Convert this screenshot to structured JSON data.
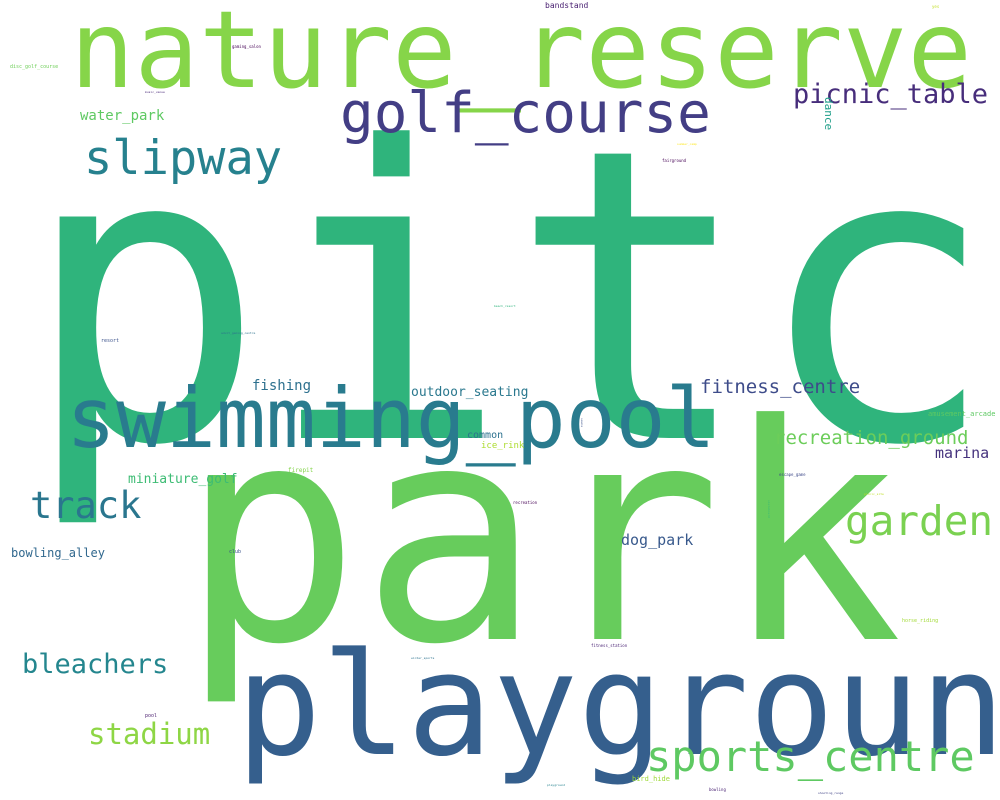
{
  "colors": {
    "background": "#ffffff",
    "palette": {
      "dark_purple": "#443983",
      "purple": "#3b528b",
      "blue": "#31688e",
      "teal_blue": "#26828e",
      "teal": "#1f9e89",
      "green_teal": "#35b779",
      "green": "#6ece58",
      "lime": "#b5de2b",
      "yellow": "#fde725"
    }
  },
  "words": [
    {
      "text": "pitch",
      "color": "#2fb47c"
    },
    {
      "text": "park",
      "color": "#67cc5c"
    },
    {
      "text": "nature_reserve",
      "color": "#86d549"
    },
    {
      "text": "playground",
      "color": "#355f8d"
    },
    {
      "text": "swimming_pool",
      "color": "#297b8e"
    },
    {
      "text": "golf_course",
      "color": "#433e85"
    },
    {
      "text": "slipway",
      "color": "#26818e"
    },
    {
      "text": "picnic_table",
      "color": "#472d7b"
    },
    {
      "text": "track",
      "color": "#2a768e"
    },
    {
      "text": "garden",
      "color": "#7ad151"
    },
    {
      "text": "sports_centre",
      "color": "#5ec962"
    },
    {
      "text": "bleachers",
      "color": "#24868e"
    },
    {
      "text": "stadium",
      "color": "#8ed645"
    },
    {
      "text": "recreation_ground",
      "color": "#6ccd5a"
    },
    {
      "text": "fitness_centre",
      "color": "#3e4c8a"
    },
    {
      "text": "water_park",
      "color": "#5ec962"
    },
    {
      "text": "fishing",
      "color": "#2d708e"
    },
    {
      "text": "outdoor_seating",
      "color": "#2a788e"
    },
    {
      "text": "miniature_golf",
      "color": "#3dbc74"
    },
    {
      "text": "marina",
      "color": "#46337e"
    },
    {
      "text": "dog_park",
      "color": "#38598c"
    },
    {
      "text": "bowling_alley",
      "color": "#31688e"
    },
    {
      "text": "common",
      "color": "#2c718e"
    },
    {
      "text": "ice_rink",
      "color": "#addc30"
    },
    {
      "text": "dance",
      "color": "#1f9e89"
    },
    {
      "text": "bandstand",
      "color": "#481f70"
    },
    {
      "text": "amusement_arcade",
      "color": "#5ec962"
    },
    {
      "text": "firepit",
      "color": "#84d44b"
    },
    {
      "text": "bird_hide",
      "color": "#9fda3a"
    },
    {
      "text": "disc_golf_course",
      "color": "#6ece58"
    },
    {
      "text": "resort",
      "color": "#3b528b"
    },
    {
      "text": "horse_riding",
      "color": "#a2da37"
    },
    {
      "text": "fitness_station",
      "color": "#482173"
    },
    {
      "text": "club",
      "color": "#3b528b"
    },
    {
      "text": "pool",
      "color": "#481b6d"
    },
    {
      "text": "fairground",
      "color": "#440154"
    },
    {
      "text": "gaming_salon",
      "color": "#440154"
    },
    {
      "text": "music_venue",
      "color": "#482878"
    },
    {
      "text": "adult_gaming_centre",
      "color": "#2c728e"
    },
    {
      "text": "escape_game",
      "color": "#3e4989"
    },
    {
      "text": "recreation",
      "color": "#440154"
    },
    {
      "text": "bowling",
      "color": "#482173"
    },
    {
      "text": "shooting_range",
      "color": "#414487"
    },
    {
      "text": "summer_camp",
      "color": "#fde725"
    },
    {
      "text": "yes",
      "color": "#c2df23"
    },
    {
      "text": "picnic_site",
      "color": "#bddf26"
    },
    {
      "text": "beach_resort",
      "color": "#2fb47c"
    },
    {
      "text": "skateboard",
      "color": "#3dbc74"
    },
    {
      "text": "playground",
      "color": "#26828e"
    },
    {
      "text": "sauna",
      "color": "#3b528b"
    },
    {
      "text": "winter_sports",
      "color": "#2c728e"
    }
  ]
}
